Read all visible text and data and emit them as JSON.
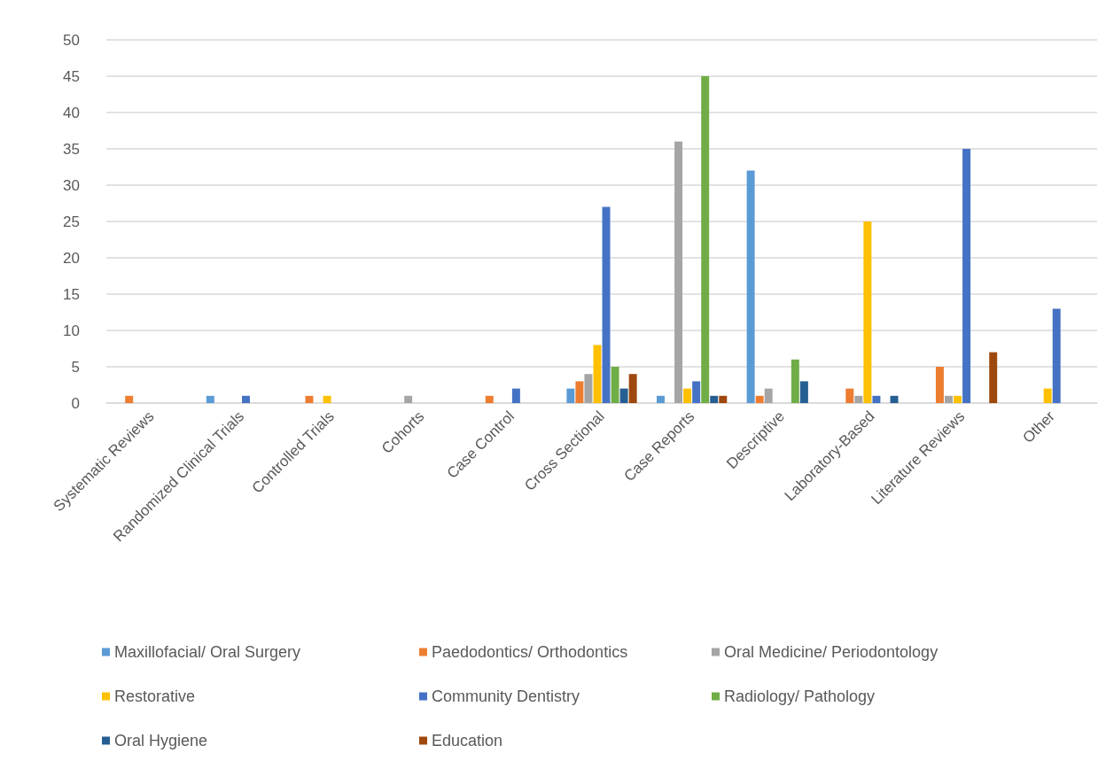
{
  "chart_data": {
    "type": "bar",
    "categories": [
      "Systematic Reviews",
      "Randomized Clinical Trials",
      "Controlled Trials",
      "Cohorts",
      "Case Control",
      "Cross Sectional",
      "Case Reports",
      "Descriptive",
      "Laboratory-Based",
      "Literature Reviews",
      "Other"
    ],
    "series": [
      {
        "name": "Maxillofacial/ Oral Surgery",
        "color": "#5b9bd5",
        "values": [
          0,
          1,
          0,
          0,
          0,
          2,
          1,
          32,
          0,
          0,
          0
        ]
      },
      {
        "name": "Paedodontics/ Orthodontics",
        "color": "#ed7d31",
        "values": [
          1,
          0,
          1,
          0,
          1,
          3,
          0,
          1,
          2,
          5,
          0
        ]
      },
      {
        "name": "Oral Medicine/ Periodontology",
        "color": "#a5a5a5",
        "values": [
          0,
          0,
          0,
          1,
          0,
          4,
          36,
          2,
          1,
          1,
          0
        ]
      },
      {
        "name": "Restorative",
        "color": "#ffc000",
        "values": [
          0,
          0,
          1,
          0,
          0,
          8,
          2,
          0,
          25,
          1,
          2
        ]
      },
      {
        "name": "Community Dentistry",
        "color": "#4472c4",
        "values": [
          0,
          1,
          0,
          0,
          2,
          27,
          3,
          0,
          1,
          35,
          13
        ]
      },
      {
        "name": "Radiology/ Pathology",
        "color": "#70ad47",
        "values": [
          0,
          0,
          0,
          0,
          0,
          5,
          45,
          6,
          0,
          0,
          0
        ]
      },
      {
        "name": "Oral Hygiene",
        "color": "#255e91",
        "values": [
          0,
          0,
          0,
          0,
          0,
          2,
          1,
          3,
          1,
          0,
          0
        ]
      },
      {
        "name": "Education",
        "color": "#9e480e",
        "values": [
          0,
          0,
          0,
          0,
          0,
          4,
          1,
          0,
          0,
          7,
          0
        ]
      }
    ],
    "ylim": [
      0,
      50
    ],
    "yticks": [
      0,
      5,
      10,
      15,
      20,
      25,
      30,
      35,
      40,
      45,
      50
    ],
    "grid": "y",
    "legend": "bottom"
  }
}
